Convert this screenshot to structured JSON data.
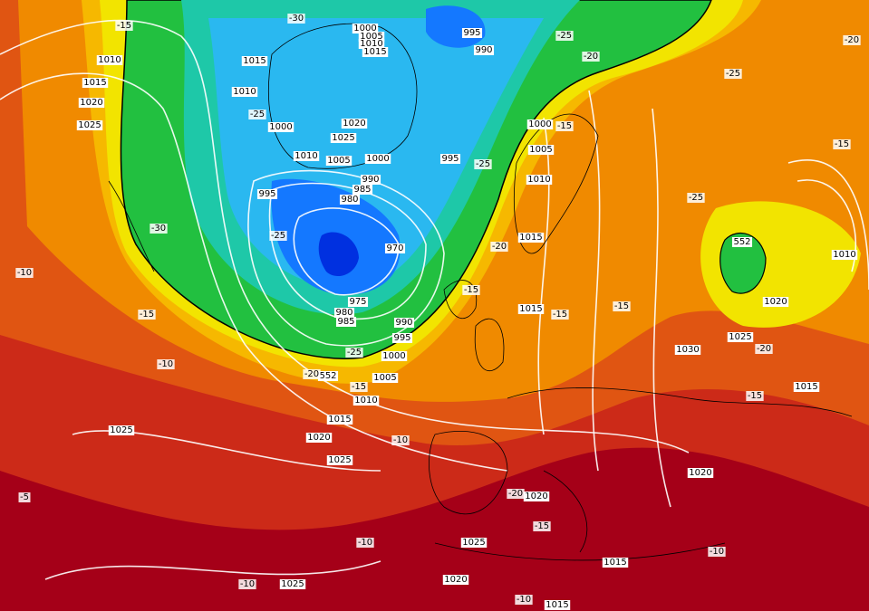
{
  "isobars": [
    1010,
    1015,
    1020,
    1025,
    1015,
    1010,
    1000,
    1010,
    1005,
    1000,
    995,
    990,
    985,
    980,
    970,
    975,
    980,
    985,
    990,
    995,
    1000,
    1005,
    1010,
    1015,
    1020,
    1025,
    1025,
    1000,
    1005,
    1010,
    1015,
    1020,
    1025,
    995,
    990,
    995,
    1000,
    1005,
    1010,
    1015,
    1015,
    1030,
    1025,
    1020,
    1015,
    1010,
    1020,
    1020,
    1025,
    1015,
    1020,
    1025,
    1015
  ],
  "thickness": [
    552,
    552
  ],
  "temperature": [
    -30,
    -15,
    -25,
    -20,
    -25,
    -20,
    -15,
    -25,
    -25,
    -15,
    -25,
    -30,
    -25,
    -20,
    -10,
    -15,
    -15,
    -15,
    -15,
    -25,
    -20,
    -15,
    -10,
    -20,
    -15,
    -10,
    -5,
    -20,
    -15,
    -10,
    -10,
    -10,
    -10
  ]
}
